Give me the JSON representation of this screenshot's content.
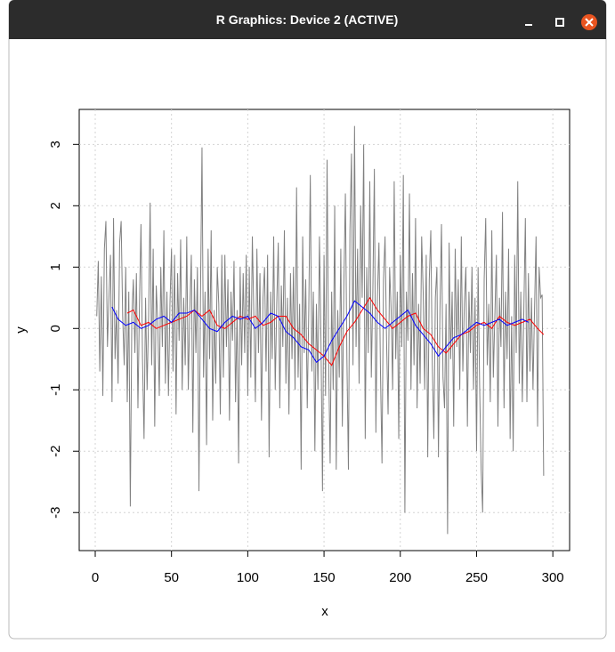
{
  "window_title": "R Graphics: Device 2 (ACTIVE)",
  "chart_data": {
    "type": "line",
    "xlabel": "x",
    "ylabel": "y",
    "grid": true,
    "xlim": [
      -10.5,
      311
    ],
    "ylim": [
      -3.62,
      3.57
    ],
    "xticks": [
      0,
      50,
      100,
      150,
      200,
      250,
      300
    ],
    "yticks": [
      -3,
      -2,
      -1,
      0,
      1,
      2,
      3
    ],
    "series": [
      {
        "color": "#808080",
        "x": [
          1,
          2,
          3,
          4,
          5,
          6,
          7,
          8,
          9,
          10,
          11,
          12,
          13,
          14,
          15,
          16,
          17,
          18,
          19,
          20,
          21,
          22,
          23,
          24,
          25,
          26,
          27,
          28,
          29,
          30,
          31,
          32,
          33,
          34,
          35,
          36,
          37,
          38,
          39,
          40,
          41,
          42,
          43,
          44,
          45,
          46,
          47,
          48,
          49,
          50,
          51,
          52,
          53,
          54,
          55,
          56,
          57,
          58,
          59,
          60,
          61,
          62,
          63,
          64,
          65,
          66,
          67,
          68,
          69,
          70,
          71,
          72,
          73,
          74,
          75,
          76,
          77,
          78,
          79,
          80,
          81,
          82,
          83,
          84,
          85,
          86,
          87,
          88,
          89,
          90,
          91,
          92,
          93,
          94,
          95,
          96,
          97,
          98,
          99,
          100,
          101,
          102,
          103,
          104,
          105,
          106,
          107,
          108,
          109,
          110,
          111,
          112,
          113,
          114,
          115,
          116,
          117,
          118,
          119,
          120,
          121,
          122,
          123,
          124,
          125,
          126,
          127,
          128,
          129,
          130,
          131,
          132,
          133,
          134,
          135,
          136,
          137,
          138,
          139,
          140,
          141,
          142,
          143,
          144,
          145,
          146,
          147,
          148,
          149,
          150,
          151,
          152,
          153,
          154,
          155,
          156,
          157,
          158,
          159,
          160,
          161,
          162,
          163,
          164,
          165,
          166,
          167,
          168,
          169,
          170,
          171,
          172,
          173,
          174,
          175,
          176,
          177,
          178,
          179,
          180,
          181,
          182,
          183,
          184,
          185,
          186,
          187,
          188,
          189,
          190,
          191,
          192,
          193,
          194,
          195,
          196,
          197,
          198,
          199,
          200,
          201,
          202,
          203,
          204,
          205,
          206,
          207,
          208,
          209,
          210,
          211,
          212,
          213,
          214,
          215,
          216,
          217,
          218,
          219,
          220,
          221,
          222,
          223,
          224,
          225,
          226,
          227,
          228,
          229,
          230,
          231,
          232,
          233,
          234,
          235,
          236,
          237,
          238,
          239,
          240,
          241,
          242,
          243,
          244,
          245,
          246,
          247,
          248,
          249,
          250,
          251,
          252,
          253,
          254,
          255,
          256,
          257,
          258,
          259,
          260,
          261,
          262,
          263,
          264,
          265,
          266,
          267,
          268,
          269,
          270,
          271,
          272,
          273,
          274,
          275,
          276,
          277,
          278,
          279,
          280,
          281,
          282,
          283,
          284,
          285,
          286,
          287,
          288,
          289,
          290,
          291,
          292,
          293,
          294
        ],
        "values": [
          0.2,
          1.1,
          -0.7,
          0.85,
          -1.1,
          1.3,
          1.75,
          -0.3,
          0.5,
          1.2,
          -1.2,
          1.8,
          -0.5,
          0.3,
          -0.9,
          1.4,
          1.75,
          0.2,
          -0.6,
          1.0,
          -1.2,
          0.6,
          -2.9,
          0.2,
          0.8,
          -0.4,
          0.9,
          -1.3,
          0.4,
          1.7,
          -0.5,
          -1.8,
          0.5,
          -1.0,
          0.2,
          2.05,
          -0.6,
          1.3,
          -1.6,
          0.7,
          0.1,
          -1.1,
          1.0,
          -0.3,
          1.6,
          -0.9,
          0.6,
          -1.1,
          0.4,
          1.3,
          -0.7,
          1.2,
          -1.4,
          0.9,
          -0.2,
          1.45,
          -1.0,
          0.5,
          -0.6,
          1.5,
          -1.0,
          0.3,
          1.2,
          -1.7,
          0.8,
          -0.4,
          1.0,
          -2.65,
          0.5,
          2.95,
          -0.8,
          0.6,
          -1.9,
          1.3,
          -0.5,
          1.6,
          -1.5,
          0.3,
          -0.9,
          1.0,
          0.4,
          -1.4,
          1.2,
          -0.8,
          1.2,
          -0.3,
          0.8,
          -1.5,
          0.6,
          -0.2,
          1.1,
          -1.2,
          0.3,
          -2.2,
          1.0,
          -0.6,
          0.9,
          -0.4,
          1.2,
          -1.1,
          1.0,
          -0.8,
          1.5,
          0.2,
          -1.2,
          1.3,
          -0.4,
          0.9,
          -1.5,
          0.5,
          1.0,
          -0.7,
          1.2,
          -2.1,
          0.6,
          -0.5,
          1.5,
          -1.0,
          0.4,
          1.4,
          -1.3,
          0.7,
          -0.3,
          1.6,
          -0.9,
          0.5,
          -1.4,
          0.9,
          -0.5,
          1.0,
          -1.0,
          2.3,
          -0.8,
          0.4,
          -2.3,
          1.5,
          -0.4,
          0.8,
          -1.3,
          0.3,
          2.5,
          -0.7,
          0.6,
          -2.0,
          0.4,
          -1.0,
          1.5,
          -0.2,
          -2.65,
          1.2,
          -1.1,
          2.75,
          -0.5,
          -2.2,
          0.6,
          -1.0,
          2.0,
          -2.3,
          0.3,
          -0.8,
          1.3,
          -1.6,
          0.7,
          2.2,
          -0.5,
          -2.3,
          1.6,
          2.85,
          -0.6,
          3.3,
          -0.3,
          1.3,
          -0.9,
          2.0,
          0.5,
          3.0,
          -1.8,
          1.0,
          -0.4,
          2.4,
          -0.8,
          0.6,
          2.6,
          -1.7,
          0.5,
          1.4,
          -0.7,
          -2.2,
          0.8,
          1.5,
          -0.2,
          -1.4,
          1.0,
          0.3,
          -1.0,
          2.4,
          -0.5,
          0.6,
          -1.8,
          1.2,
          -0.3,
          2.5,
          -3.0,
          0.6,
          -0.2,
          2.2,
          -1.0,
          0.9,
          -0.6,
          1.8,
          -1.3,
          0.4,
          -0.9,
          1.5,
          0.6,
          -1.0,
          1.2,
          -2.1,
          0.8,
          1.6,
          -0.6,
          -1.8,
          0.5,
          1.0,
          -2.1,
          0.3,
          1.7,
          -0.8,
          -1.3,
          0.4,
          -3.35,
          1.4,
          -0.5,
          0.6,
          -1.6,
          1.3,
          -0.3,
          0.8,
          -1.0,
          1.5,
          -0.7,
          0.4,
          1.0,
          -1.6,
          0.6,
          -0.4,
          1.0,
          -1.0,
          0.5,
          -2.0,
          1.0,
          -0.9,
          -2.3,
          -3.0,
          0.8,
          1.8,
          -0.6,
          0.4,
          -1.2,
          1.6,
          -0.8,
          0.2,
          1.2,
          -1.6,
          0.5,
          -0.3,
          1.9,
          -1.3,
          0.6,
          -0.5,
          1.3,
          -1.8,
          0.2,
          -2.0,
          1.2,
          -0.4,
          2.4,
          -0.9,
          0.6,
          -1.2,
          0.3,
          1.8,
          -1.2,
          0.9,
          -0.7,
          0.5,
          -1.0,
          0.3,
          1.5,
          -1.6,
          1.0,
          0.5,
          0.55,
          -2.4
        ]
      },
      {
        "color": "#ff0000",
        "x": [
          21,
          25,
          30,
          35,
          40,
          45,
          50,
          55,
          60,
          65,
          70,
          75,
          80,
          85,
          90,
          95,
          100,
          105,
          110,
          115,
          120,
          125,
          130,
          135,
          140,
          145,
          150,
          155,
          160,
          165,
          170,
          175,
          180,
          185,
          190,
          195,
          200,
          205,
          210,
          215,
          220,
          225,
          230,
          235,
          240,
          245,
          250,
          255,
          260,
          265,
          270,
          275,
          280,
          285,
          290,
          294
        ],
        "values": [
          0.25,
          0.3,
          0.05,
          0.1,
          0.0,
          0.05,
          0.1,
          0.15,
          0.2,
          0.3,
          0.2,
          0.3,
          0.05,
          0.0,
          0.1,
          0.2,
          0.15,
          0.2,
          0.05,
          0.1,
          0.2,
          0.2,
          0.0,
          -0.1,
          -0.25,
          -0.35,
          -0.45,
          -0.6,
          -0.3,
          -0.05,
          0.1,
          0.3,
          0.5,
          0.3,
          0.15,
          0.0,
          0.1,
          0.2,
          0.25,
          0.0,
          -0.1,
          -0.3,
          -0.4,
          -0.25,
          -0.1,
          -0.05,
          0.05,
          0.1,
          0.0,
          0.2,
          0.1,
          0.05,
          0.1,
          0.15,
          0.0,
          -0.1
        ]
      },
      {
        "color": "#0000ff",
        "x": [
          11,
          15,
          20,
          25,
          30,
          35,
          40,
          45,
          50,
          55,
          60,
          65,
          70,
          75,
          80,
          85,
          90,
          95,
          100,
          105,
          110,
          115,
          120,
          125,
          130,
          135,
          140,
          145,
          150,
          155,
          160,
          165,
          170,
          175,
          180,
          185,
          190,
          195,
          200,
          205,
          210,
          215,
          220,
          225,
          230,
          235,
          240,
          245,
          250,
          255,
          260,
          265,
          270,
          275,
          280,
          284
        ],
        "values": [
          0.35,
          0.15,
          0.05,
          0.1,
          0.0,
          0.05,
          0.15,
          0.2,
          0.1,
          0.25,
          0.25,
          0.3,
          0.15,
          0.0,
          -0.05,
          0.1,
          0.2,
          0.15,
          0.2,
          0.0,
          0.1,
          0.25,
          0.2,
          -0.05,
          -0.15,
          -0.3,
          -0.35,
          -0.55,
          -0.45,
          -0.2,
          0.0,
          0.2,
          0.45,
          0.35,
          0.25,
          0.1,
          0.0,
          0.1,
          0.2,
          0.3,
          0.05,
          -0.1,
          -0.25,
          -0.45,
          -0.3,
          -0.15,
          -0.1,
          0.0,
          0.1,
          0.05,
          0.1,
          0.15,
          0.05,
          0.1,
          0.15,
          0.1
        ]
      }
    ]
  }
}
